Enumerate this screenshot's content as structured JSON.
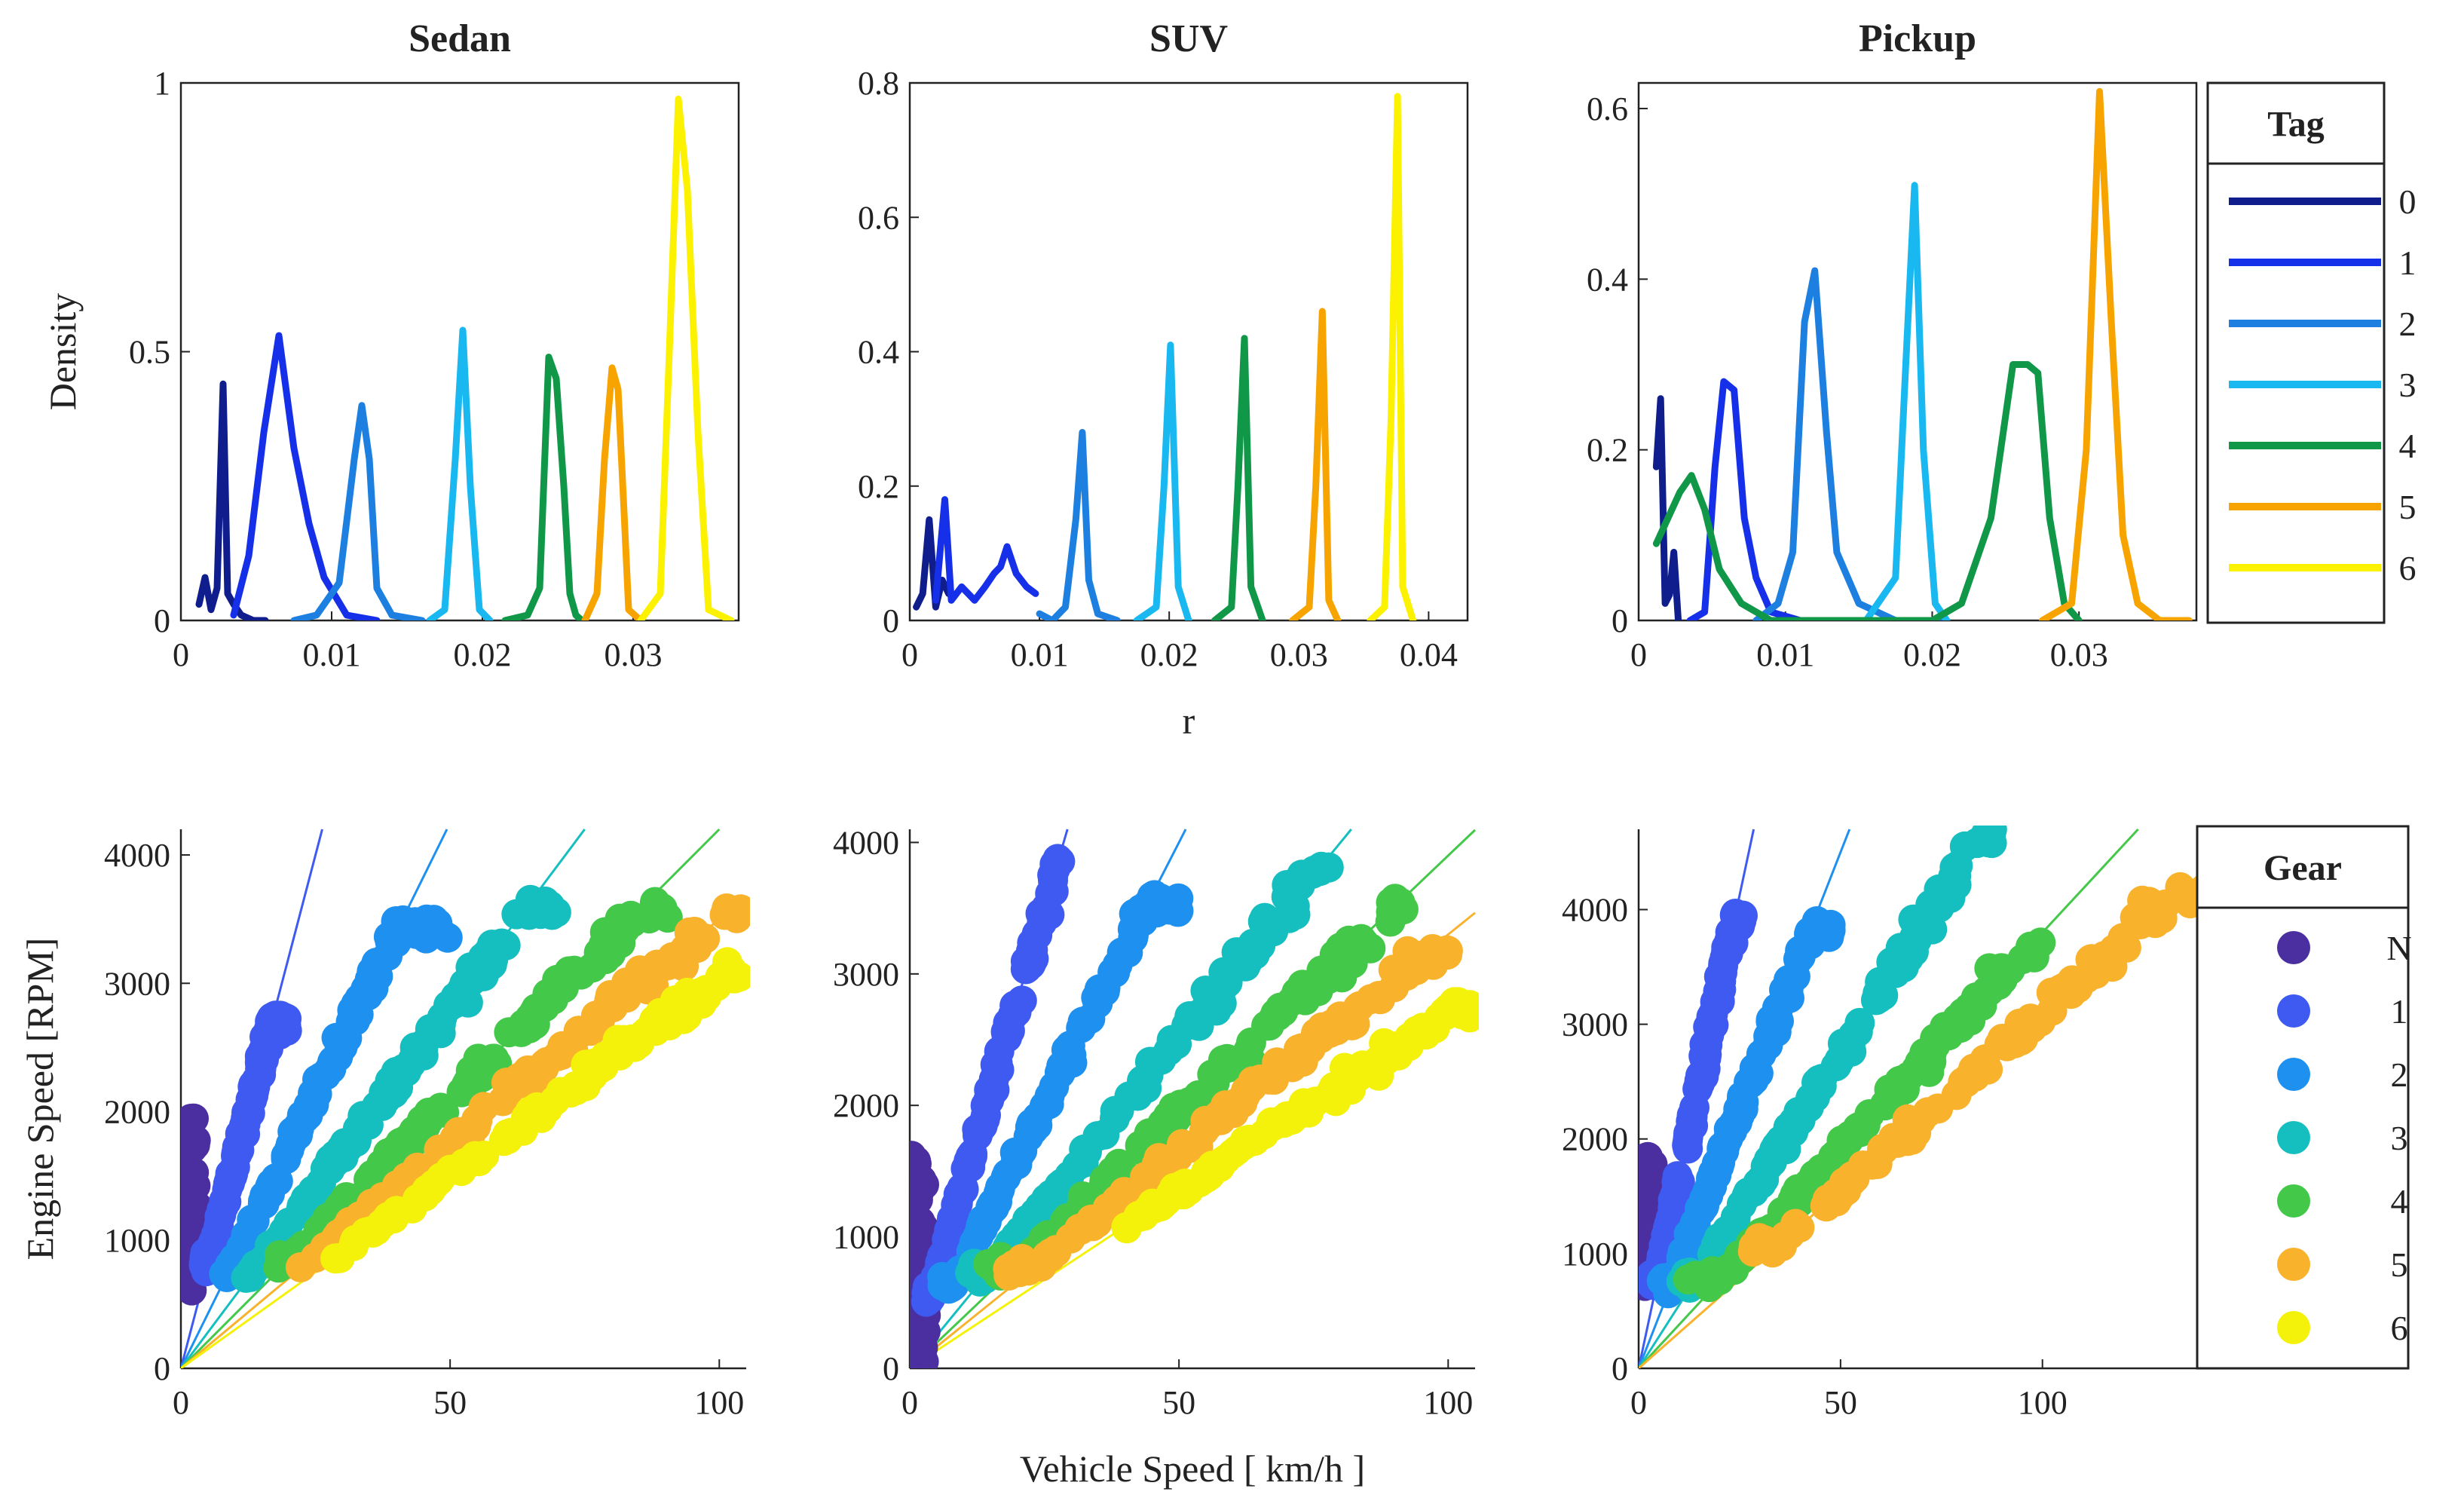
{
  "chart_data": [
    {
      "type": "line",
      "title": "Sedan",
      "xlabel": "",
      "ylabel": "Density",
      "xlim": [
        0,
        0.037
      ],
      "ylim": [
        0,
        1
      ],
      "xticks": [
        "0",
        "0.01",
        "0.02",
        "0.03"
      ],
      "yticks": [
        "0",
        "0.5",
        "1"
      ],
      "series": [
        {
          "name": "0",
          "x": [
            0.0012,
            0.0016,
            0.002,
            0.0024,
            0.0028,
            0.0031,
            0.0035,
            0.004,
            0.0048,
            0.0056
          ],
          "y": [
            0.03,
            0.08,
            0.02,
            0.06,
            0.44,
            0.05,
            0.03,
            0.01,
            0.0,
            0.0
          ]
        },
        {
          "name": "1",
          "x": [
            0.0035,
            0.0045,
            0.0055,
            0.0065,
            0.0075,
            0.0085,
            0.0095,
            0.011,
            0.013
          ],
          "y": [
            0.01,
            0.12,
            0.35,
            0.53,
            0.32,
            0.18,
            0.08,
            0.01,
            0.0
          ]
        },
        {
          "name": "2",
          "x": [
            0.0075,
            0.009,
            0.0105,
            0.0115,
            0.012,
            0.0125,
            0.013,
            0.014,
            0.016
          ],
          "y": [
            0.0,
            0.01,
            0.07,
            0.3,
            0.4,
            0.3,
            0.06,
            0.01,
            0.0
          ]
        },
        {
          "name": "3",
          "x": [
            0.0165,
            0.0175,
            0.0182,
            0.0187,
            0.0192,
            0.0198,
            0.0205
          ],
          "y": [
            0.0,
            0.02,
            0.3,
            0.54,
            0.25,
            0.02,
            0.0
          ]
        },
        {
          "name": "4",
          "x": [
            0.0215,
            0.023,
            0.0238,
            0.0244,
            0.0249,
            0.0254,
            0.0258,
            0.0262,
            0.0266
          ],
          "y": [
            0.0,
            0.01,
            0.06,
            0.49,
            0.45,
            0.25,
            0.05,
            0.01,
            0.0
          ]
        },
        {
          "name": "5",
          "x": [
            0.0268,
            0.0276,
            0.0281,
            0.0286,
            0.029,
            0.0294,
            0.0297,
            0.0305
          ],
          "y": [
            0.0,
            0.05,
            0.3,
            0.47,
            0.43,
            0.2,
            0.02,
            0.0
          ]
        },
        {
          "name": "6",
          "x": [
            0.0305,
            0.0318,
            0.0324,
            0.033,
            0.0336,
            0.0343,
            0.035,
            0.0365
          ],
          "y": [
            0.0,
            0.05,
            0.5,
            0.97,
            0.8,
            0.35,
            0.02,
            0.0
          ]
        }
      ]
    },
    {
      "type": "line",
      "title": "SUV",
      "xlabel": "r",
      "ylabel": "",
      "xlim": [
        0,
        0.043
      ],
      "ylim": [
        0,
        0.8
      ],
      "xticks": [
        "0",
        "0.01",
        "0.02",
        "0.03",
        "0.04"
      ],
      "yticks": [
        "0",
        "0.2",
        "0.4",
        "0.6",
        "0.8"
      ],
      "series": [
        {
          "name": "0",
          "x": [
            0.0005,
            0.001,
            0.0015,
            0.002,
            0.0025,
            0.003
          ],
          "y": [
            0.02,
            0.04,
            0.15,
            0.02,
            0.06,
            0.04
          ]
        },
        {
          "name": "1",
          "x": [
            0.002,
            0.0027,
            0.0032,
            0.004,
            0.005,
            0.0058,
            0.0065,
            0.007,
            0.0075,
            0.0082,
            0.009,
            0.0097
          ],
          "y": [
            0.03,
            0.18,
            0.03,
            0.05,
            0.03,
            0.05,
            0.07,
            0.08,
            0.11,
            0.07,
            0.05,
            0.04
          ]
        },
        {
          "name": "2",
          "x": [
            0.01,
            0.011,
            0.012,
            0.0128,
            0.0133,
            0.0138,
            0.0145,
            0.016
          ],
          "y": [
            0.01,
            0.0,
            0.02,
            0.15,
            0.28,
            0.06,
            0.01,
            0.0
          ]
        },
        {
          "name": "3",
          "x": [
            0.0175,
            0.019,
            0.0196,
            0.0201,
            0.0207,
            0.0215
          ],
          "y": [
            0.0,
            0.02,
            0.2,
            0.41,
            0.05,
            0.0
          ]
        },
        {
          "name": "4",
          "x": [
            0.0235,
            0.0248,
            0.0253,
            0.0258,
            0.0263,
            0.0272
          ],
          "y": [
            0.0,
            0.02,
            0.2,
            0.42,
            0.05,
            0.0
          ]
        },
        {
          "name": "5",
          "x": [
            0.0295,
            0.0308,
            0.0313,
            0.0318,
            0.0323,
            0.033
          ],
          "y": [
            0.0,
            0.02,
            0.2,
            0.46,
            0.03,
            0.0
          ]
        },
        {
          "name": "6",
          "x": [
            0.0355,
            0.0366,
            0.0371,
            0.0376,
            0.038,
            0.0388
          ],
          "y": [
            0.0,
            0.02,
            0.3,
            0.78,
            0.05,
            0.0
          ]
        }
      ]
    },
    {
      "type": "line",
      "title": "Pickup",
      "xlabel": "",
      "ylabel": "",
      "xlim": [
        0,
        0.038
      ],
      "ylim": [
        0,
        0.63
      ],
      "xticks": [
        "0",
        "0.01",
        "0.02",
        "0.03"
      ],
      "yticks": [
        "0",
        "0.2",
        "0.4",
        "0.6"
      ],
      "series": [
        {
          "name": "0",
          "x": [
            0.0012,
            0.0015,
            0.0018,
            0.0021,
            0.0024,
            0.0027
          ],
          "y": [
            0.18,
            0.26,
            0.02,
            0.03,
            0.08,
            0.0
          ]
        },
        {
          "name": "1",
          "x": [
            0.0035,
            0.0045,
            0.0052,
            0.0058,
            0.0065,
            0.0072,
            0.008,
            0.009,
            0.011
          ],
          "y": [
            0.0,
            0.01,
            0.18,
            0.28,
            0.27,
            0.12,
            0.05,
            0.01,
            0.0
          ]
        },
        {
          "name": "2",
          "x": [
            0.008,
            0.0095,
            0.0105,
            0.0113,
            0.012,
            0.0128,
            0.0135,
            0.015,
            0.0175,
            0.021
          ],
          "y": [
            0.0,
            0.02,
            0.08,
            0.35,
            0.41,
            0.22,
            0.08,
            0.02,
            0.0,
            0.0
          ]
        },
        {
          "name": "3",
          "x": [
            0.0155,
            0.0175,
            0.0182,
            0.0188,
            0.0194,
            0.0202,
            0.021
          ],
          "y": [
            0.0,
            0.05,
            0.3,
            0.51,
            0.2,
            0.02,
            0.0
          ]
        },
        {
          "name": "4",
          "x": [
            0.0012,
            0.002,
            0.0028,
            0.0036,
            0.0045,
            0.0055,
            0.007,
            0.009,
            0.012,
            0.016,
            0.02,
            0.022,
            0.024,
            0.0255,
            0.0265,
            0.0272,
            0.028,
            0.029,
            0.03
          ],
          "y": [
            0.09,
            0.12,
            0.15,
            0.17,
            0.13,
            0.06,
            0.02,
            0.0,
            0.0,
            0.0,
            0.0,
            0.02,
            0.12,
            0.3,
            0.3,
            0.29,
            0.12,
            0.02,
            0.0
          ]
        },
        {
          "name": "5",
          "x": [
            0.0275,
            0.0295,
            0.0305,
            0.0314,
            0.0322,
            0.033,
            0.034,
            0.0355,
            0.0375
          ],
          "y": [
            0.0,
            0.02,
            0.2,
            0.62,
            0.35,
            0.1,
            0.02,
            0.0,
            0.0
          ]
        }
      ]
    },
    {
      "type": "scatter",
      "title": "",
      "xlabel": "",
      "ylabel": "Engine Speed [RPM]",
      "xlim": [
        0,
        105
      ],
      "ylim": [
        0,
        4200
      ],
      "xticks": [
        "0",
        "50",
        "100"
      ],
      "yticks": [
        "0",
        "1000",
        "2000",
        "3000",
        "4000"
      ],
      "series": [
        {
          "name": "N",
          "ratio": 0,
          "x_range": [
            0,
            3
          ],
          "y_range": [
            600,
            1950
          ]
        },
        {
          "name": "1",
          "ratio": 160,
          "x_range": [
            4,
            20
          ],
          "y_range": [
            750,
            2750
          ]
        },
        {
          "name": "2",
          "ratio": 85,
          "x_range": [
            8,
            50
          ],
          "y_range": [
            650,
            3500
          ]
        },
        {
          "name": "3",
          "ratio": 56,
          "x_range": [
            12,
            70
          ],
          "y_range": [
            700,
            3650
          ]
        },
        {
          "name": "4",
          "ratio": 42,
          "x_range": [
            18,
            92
          ],
          "y_range": [
            750,
            3650
          ]
        },
        {
          "name": "5",
          "ratio": 35,
          "x_range": [
            22,
            105
          ],
          "y_range": [
            750,
            3650
          ]
        },
        {
          "name": "6",
          "ratio": 30,
          "x_range": [
            25,
            105
          ],
          "y_range": [
            800,
            3250
          ]
        }
      ]
    },
    {
      "type": "scatter",
      "title": "",
      "xlabel": "Vehicle Speed [ km/h ]",
      "ylabel": "",
      "xlim": [
        0,
        105
      ],
      "ylim": [
        0,
        4100
      ],
      "xticks": [
        "0",
        "50",
        "100"
      ],
      "yticks": [
        "0",
        "1000",
        "2000",
        "3000",
        "4000"
      ],
      "series": [
        {
          "name": "N",
          "ratio": 0,
          "x_range": [
            0,
            3
          ],
          "y_range": [
            0,
            1650
          ]
        },
        {
          "name": "1",
          "ratio": 140,
          "x_range": [
            3,
            28
          ],
          "y_range": [
            500,
            4000
          ]
        },
        {
          "name": "2",
          "ratio": 80,
          "x_range": [
            6,
            50
          ],
          "y_range": [
            600,
            3600
          ]
        },
        {
          "name": "3",
          "ratio": 50,
          "x_range": [
            10,
            78
          ],
          "y_range": [
            650,
            3850
          ]
        },
        {
          "name": "4",
          "ratio": 39,
          "x_range": [
            14,
            95
          ],
          "y_range": [
            700,
            3700
          ]
        },
        {
          "name": "5",
          "ratio": 33,
          "x_range": [
            18,
            100
          ],
          "y_range": [
            700,
            3200
          ]
        },
        {
          "name": "6",
          "ratio": 27,
          "x_range": [
            40,
            105
          ],
          "y_range": [
            1000,
            2800
          ]
        }
      ]
    },
    {
      "type": "scatter",
      "title": "",
      "xlabel": "",
      "ylabel": "",
      "xlim": [
        0,
        140
      ],
      "ylim": [
        0,
        4700
      ],
      "xticks": [
        "0",
        "50",
        "100"
      ],
      "yticks": [
        "0",
        "1000",
        "2000",
        "3000",
        "4000"
      ],
      "series": [
        {
          "name": "N",
          "ratio": 0,
          "x_range": [
            0,
            4
          ],
          "y_range": [
            700,
            1850
          ]
        },
        {
          "name": "1",
          "ratio": 165,
          "x_range": [
            3,
            26
          ],
          "y_range": [
            700,
            4000
          ]
        },
        {
          "name": "2",
          "ratio": 90,
          "x_range": [
            5,
            48
          ],
          "y_range": [
            650,
            3900
          ]
        },
        {
          "name": "3",
          "ratio": 55,
          "x_range": [
            10,
            90
          ],
          "y_range": [
            700,
            4700
          ]
        },
        {
          "name": "4",
          "ratio": 38,
          "x_range": [
            12,
            100
          ],
          "y_range": [
            700,
            3900
          ]
        },
        {
          "name": "5",
          "ratio": 31,
          "x_range": [
            28,
            140
          ],
          "y_range": [
            1000,
            4200
          ]
        }
      ]
    }
  ],
  "legend_tag": {
    "title": "Tag",
    "entries": [
      {
        "label": "0",
        "color": "#0f1e8c"
      },
      {
        "label": "1",
        "color": "#1530e8"
      },
      {
        "label": "2",
        "color": "#1d7fe0"
      },
      {
        "label": "3",
        "color": "#1ab8f0"
      },
      {
        "label": "4",
        "color": "#109848"
      },
      {
        "label": "5",
        "color": "#f7a400"
      },
      {
        "label": "6",
        "color": "#fcf200"
      }
    ]
  },
  "legend_gear": {
    "title": "Gear",
    "entries": [
      {
        "label": "N",
        "color": "#4b2fa0"
      },
      {
        "label": "1",
        "color": "#3e5af0"
      },
      {
        "label": "2",
        "color": "#1e90f0"
      },
      {
        "label": "3",
        "color": "#16bfbf"
      },
      {
        "label": "4",
        "color": "#43c84a"
      },
      {
        "label": "5",
        "color": "#f8b22c"
      },
      {
        "label": "6",
        "color": "#f4f20a"
      }
    ]
  }
}
